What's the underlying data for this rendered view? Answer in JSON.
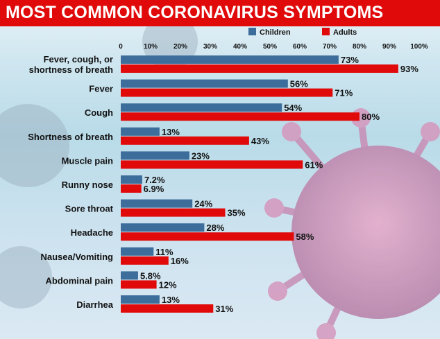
{
  "chart_data": {
    "type": "bar",
    "orientation": "horizontal",
    "title": "MOST COMMON CORONAVIRUS SYMPTOMS",
    "categories": [
      "Fever, cough, or shortness of breath",
      "Fever",
      "Cough",
      "Shortness of breath",
      "Muscle pain",
      "Runny nose",
      "Sore throat",
      "Headache",
      "Nausea/Vomiting",
      "Abdominal pain",
      "Diarrhea"
    ],
    "series": [
      {
        "name": "Children",
        "color": "#3d6d9a",
        "values": [
          73,
          56,
          54,
          13,
          23,
          7.2,
          24,
          28,
          11,
          5.8,
          13
        ],
        "labels": [
          "73%",
          "56%",
          "54%",
          "13%",
          "23%",
          "7.2%",
          "24%",
          "28%",
          "11%",
          "5.8%",
          "13%"
        ]
      },
      {
        "name": "Adults",
        "color": "#e10a0a",
        "values": [
          93,
          71,
          80,
          43,
          61,
          6.9,
          35,
          58,
          16,
          12,
          31
        ],
        "labels": [
          "93%",
          "71%",
          "80%",
          "43%",
          "61%",
          "6.9%",
          "35%",
          "58%",
          "16%",
          "12%",
          "31%"
        ]
      }
    ],
    "xlim": [
      0,
      100
    ],
    "ticks": [
      "0",
      "10%",
      "20%",
      "30%",
      "40%",
      "50%",
      "60%",
      "70%",
      "80%",
      "90%",
      "100%"
    ],
    "legend_position": "top-right",
    "grid": false
  }
}
